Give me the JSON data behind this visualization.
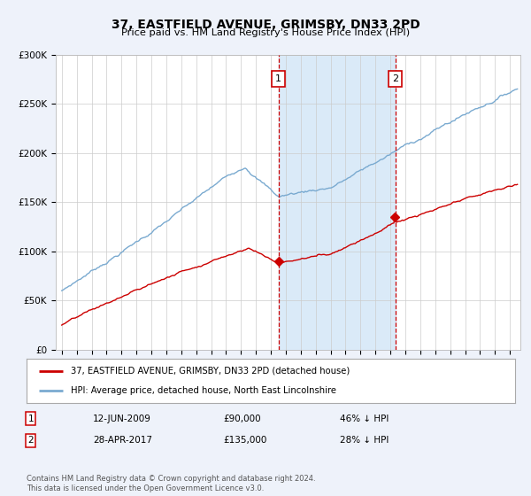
{
  "title": "37, EASTFIELD AVENUE, GRIMSBY, DN33 2PD",
  "subtitle": "Price paid vs. HM Land Registry's House Price Index (HPI)",
  "ylim": [
    0,
    300000
  ],
  "yticks": [
    0,
    50000,
    100000,
    150000,
    200000,
    250000,
    300000
  ],
  "ytick_labels": [
    "£0",
    "£50K",
    "£100K",
    "£150K",
    "£200K",
    "£250K",
    "£300K"
  ],
  "sale1_year": 2009,
  "sale1_month": 6,
  "sale1_price": 90000,
  "sale1_date": "12-JUN-2009",
  "sale1_pct": "46% ↓ HPI",
  "sale2_year": 2017,
  "sale2_month": 4,
  "sale2_price": 135000,
  "sale2_date": "28-APR-2017",
  "sale2_pct": "28% ↓ HPI",
  "legend_property": "37, EASTFIELD AVENUE, GRIMSBY, DN33 2PD (detached house)",
  "legend_hpi": "HPI: Average price, detached house, North East Lincolnshire",
  "footer": "Contains HM Land Registry data © Crown copyright and database right 2024.\nThis data is licensed under the Open Government Licence v3.0.",
  "bg_color": "#eef2fa",
  "plot_bg": "#ffffff",
  "red_color": "#cc0000",
  "blue_color": "#7aaad0",
  "shade_color": "#daeaf8"
}
